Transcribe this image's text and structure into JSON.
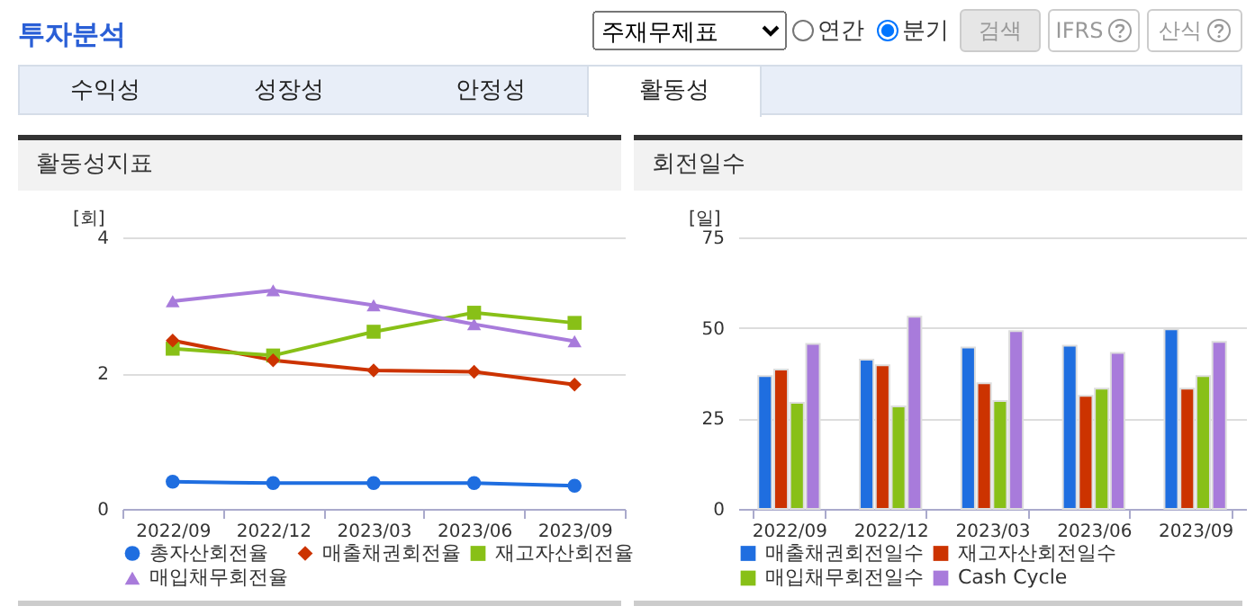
{
  "chart_data": [
    {
      "type": "other",
      "title": "투자분석",
      "annotations": [
        "주재무제표",
        "연간",
        "분기",
        "검색",
        "IFRS",
        "산식",
        "수익성",
        "성장성",
        "안정성",
        "활동성"
      ]
    },
    {
      "type": "line",
      "title": "활동성지표",
      "ylabel": "[회]",
      "categories": [
        "2022/09",
        "2022/12",
        "2023/03",
        "2023/06",
        "2023/09"
      ],
      "ylim": [
        0,
        4
      ],
      "yticks": [
        0,
        2,
        4
      ],
      "grid": "y",
      "legend": "bottom",
      "series": [
        {
          "name": "총자산회전율",
          "color": "#1f6ee0",
          "marker": "circle",
          "values": [
            0.4,
            0.38,
            0.38,
            0.38,
            0.34
          ]
        },
        {
          "name": "매출채권회전율",
          "color": "#cc3300",
          "marker": "diamond",
          "values": [
            2.48,
            2.19,
            2.04,
            2.02,
            1.83
          ]
        },
        {
          "name": "재고자산회전율",
          "color": "#88c017",
          "marker": "square",
          "values": [
            2.36,
            2.26,
            2.61,
            2.89,
            2.74
          ]
        },
        {
          "name": "매입채무회전율",
          "color": "#a87bdb",
          "marker": "triangle",
          "values": [
            3.06,
            3.22,
            3.0,
            2.72,
            2.47
          ]
        }
      ]
    },
    {
      "type": "bar",
      "title": "회전일수",
      "ylabel": "[일]",
      "categories": [
        "2022/09",
        "2022/12",
        "2023/03",
        "2023/06",
        "2023/09"
      ],
      "ylim": [
        0,
        75
      ],
      "yticks": [
        0,
        25,
        50,
        75
      ],
      "grid": "y",
      "legend": "bottom",
      "series": [
        {
          "name": "매출채권회전일수",
          "color": "#1f6ee0",
          "values": [
            36.7,
            41.2,
            44.6,
            45.1,
            49.6
          ]
        },
        {
          "name": "재고자산회전일수",
          "color": "#cc3300",
          "values": [
            38.5,
            39.7,
            34.7,
            31.2,
            33.2
          ]
        },
        {
          "name": "매입채무회전일수",
          "color": "#88c017",
          "values": [
            29.3,
            28.3,
            29.8,
            33.2,
            36.7
          ]
        },
        {
          "name": "Cash Cycle",
          "color": "#a87bdb",
          "values": [
            45.6,
            53.1,
            49.1,
            43.1,
            46.1
          ]
        }
      ]
    }
  ]
}
